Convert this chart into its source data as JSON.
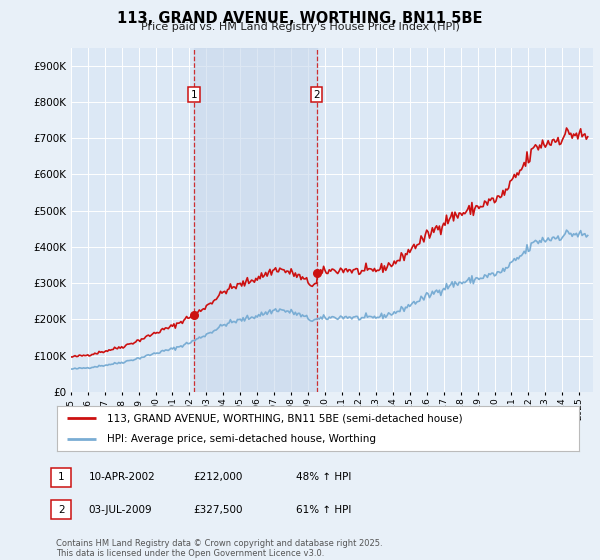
{
  "title": "113, GRAND AVENUE, WORTHING, BN11 5BE",
  "subtitle": "Price paid vs. HM Land Registry's House Price Index (HPI)",
  "legend_entry1": "113, GRAND AVENUE, WORTHING, BN11 5BE (semi-detached house)",
  "legend_entry2": "HPI: Average price, semi-detached house, Worthing",
  "sale1_date": "10-APR-2002",
  "sale1_price": 212000,
  "sale1_hpi": "48% ↑ HPI",
  "sale2_date": "03-JUL-2009",
  "sale2_price": 327500,
  "sale2_hpi": "61% ↑ HPI",
  "footnote": "Contains HM Land Registry data © Crown copyright and database right 2025.\nThis data is licensed under the Open Government Licence v3.0.",
  "background_color": "#e8f0f8",
  "plot_bg_color": "#dce8f5",
  "hpi_line_color": "#7aadd4",
  "price_line_color": "#cc1111",
  "vline_color": "#cc1111",
  "shade_color": "#c8d8ec",
  "ylim": [
    0,
    950000
  ],
  "yticks": [
    0,
    100000,
    200000,
    300000,
    400000,
    500000,
    600000,
    700000,
    800000,
    900000
  ],
  "xlim_start": 1995.0,
  "xlim_end": 2025.8
}
